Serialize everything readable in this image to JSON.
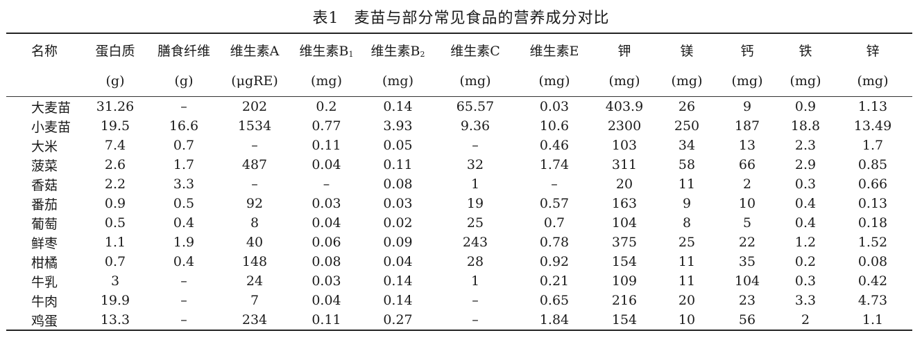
{
  "caption": {
    "number": "表1",
    "title": "麦苗与部分常见食品的营养成分对比"
  },
  "headers": [
    {
      "name": "名称",
      "sub": "",
      "unit": ""
    },
    {
      "name": "蛋白质",
      "sub": "",
      "unit": "(g)"
    },
    {
      "name": "膳食纤维",
      "sub": "",
      "unit": "(g)"
    },
    {
      "name": "维生素A",
      "sub": "",
      "unit": "(μgRE)"
    },
    {
      "name": "维生素B",
      "sub": "1",
      "unit": "(mg)"
    },
    {
      "name": "维生素B",
      "sub": "2",
      "unit": "(mg)"
    },
    {
      "name": "维生素C",
      "sub": "",
      "unit": "(mg)"
    },
    {
      "name": "维生素E",
      "sub": "",
      "unit": "(mg)"
    },
    {
      "name": "钾",
      "sub": "",
      "unit": "(mg)"
    },
    {
      "name": "镁",
      "sub": "",
      "unit": "(mg)"
    },
    {
      "name": "钙",
      "sub": "",
      "unit": "(mg)"
    },
    {
      "name": "铁",
      "sub": "",
      "unit": "(mg)"
    },
    {
      "name": "锌",
      "sub": "",
      "unit": "(mg)"
    }
  ],
  "rows": [
    [
      "大麦苗",
      "31.26",
      "–",
      "202",
      "0.2",
      "0.14",
      "65.57",
      "0.03",
      "403.9",
      "26",
      "9",
      "0.9",
      "1.13"
    ],
    [
      "小麦苗",
      "19.5",
      "16.6",
      "1534",
      "0.77",
      "3.93",
      "9.36",
      "10.6",
      "2300",
      "250",
      "187",
      "18.8",
      "13.49"
    ],
    [
      "大米",
      "7.4",
      "0.7",
      "–",
      "0.11",
      "0.05",
      "–",
      "0.46",
      "103",
      "34",
      "13",
      "2.3",
      "1.7"
    ],
    [
      "菠菜",
      "2.6",
      "1.7",
      "487",
      "0.04",
      "0.11",
      "32",
      "1.74",
      "311",
      "58",
      "66",
      "2.9",
      "0.85"
    ],
    [
      "香菇",
      "2.2",
      "3.3",
      "–",
      "–",
      "0.08",
      "1",
      "–",
      "20",
      "11",
      "2",
      "0.3",
      "0.66"
    ],
    [
      "番茄",
      "0.9",
      "0.5",
      "92",
      "0.03",
      "0.03",
      "19",
      "0.57",
      "163",
      "9",
      "10",
      "0.4",
      "0.13"
    ],
    [
      "葡萄",
      "0.5",
      "0.4",
      "8",
      "0.04",
      "0.02",
      "25",
      "0.7",
      "104",
      "8",
      "5",
      "0.4",
      "0.18"
    ],
    [
      "鲜枣",
      "1.1",
      "1.9",
      "40",
      "0.06",
      "0.09",
      "243",
      "0.78",
      "375",
      "25",
      "22",
      "1.2",
      "1.52"
    ],
    [
      "柑橘",
      "0.7",
      "0.4",
      "148",
      "0.08",
      "0.04",
      "28",
      "0.92",
      "154",
      "11",
      "35",
      "0.2",
      "0.08"
    ],
    [
      "牛乳",
      "3",
      "–",
      "24",
      "0.03",
      "0.14",
      "1",
      "0.21",
      "109",
      "11",
      "104",
      "0.3",
      "0.42"
    ],
    [
      "牛肉",
      "19.9",
      "–",
      "7",
      "0.04",
      "0.14",
      "–",
      "0.65",
      "216",
      "20",
      "23",
      "3.3",
      "4.73"
    ],
    [
      "鸡蛋",
      "13.3",
      "–",
      "234",
      "0.11",
      "0.27",
      "–",
      "1.84",
      "154",
      "10",
      "56",
      "2",
      "1.1"
    ]
  ]
}
